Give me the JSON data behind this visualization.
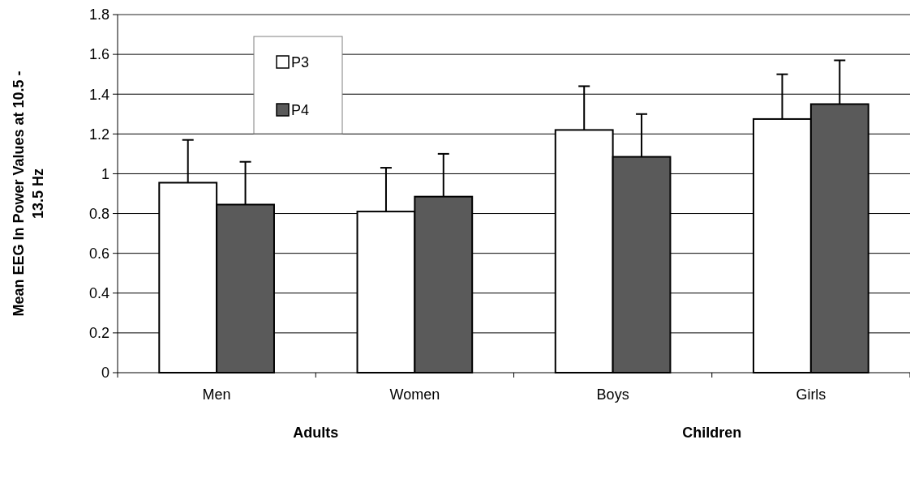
{
  "chart_data": {
    "type": "bar",
    "ylabel": "Mean EEG In Power Values at 10.5 - 13.5 Hz",
    "categories": [
      "Men",
      "Women",
      "Boys",
      "Girls"
    ],
    "series": [
      {
        "name": "P3",
        "color": "#ffffff",
        "values": [
          0.955,
          0.81,
          1.22,
          1.275
        ],
        "errors": [
          [
            0.955,
            1.17
          ],
          [
            0.81,
            1.03
          ],
          [
            1.22,
            1.44
          ],
          [
            1.275,
            1.5
          ]
        ]
      },
      {
        "name": "P4",
        "color": "#5a5a5a",
        "values": [
          0.845,
          0.885,
          1.085,
          1.35
        ],
        "errors": [
          [
            0.845,
            1.06
          ],
          [
            0.885,
            1.1
          ],
          [
            1.085,
            1.3
          ],
          [
            1.35,
            1.57
          ]
        ]
      }
    ],
    "ylim": [
      0,
      1.8
    ],
    "yticks": [
      0,
      0.2,
      0.4,
      0.6,
      0.8,
      1,
      1.2,
      1.4,
      1.6,
      1.8
    ],
    "grid": "y",
    "legend": "top left",
    "annotations": [
      "Adults",
      "Children"
    ]
  }
}
